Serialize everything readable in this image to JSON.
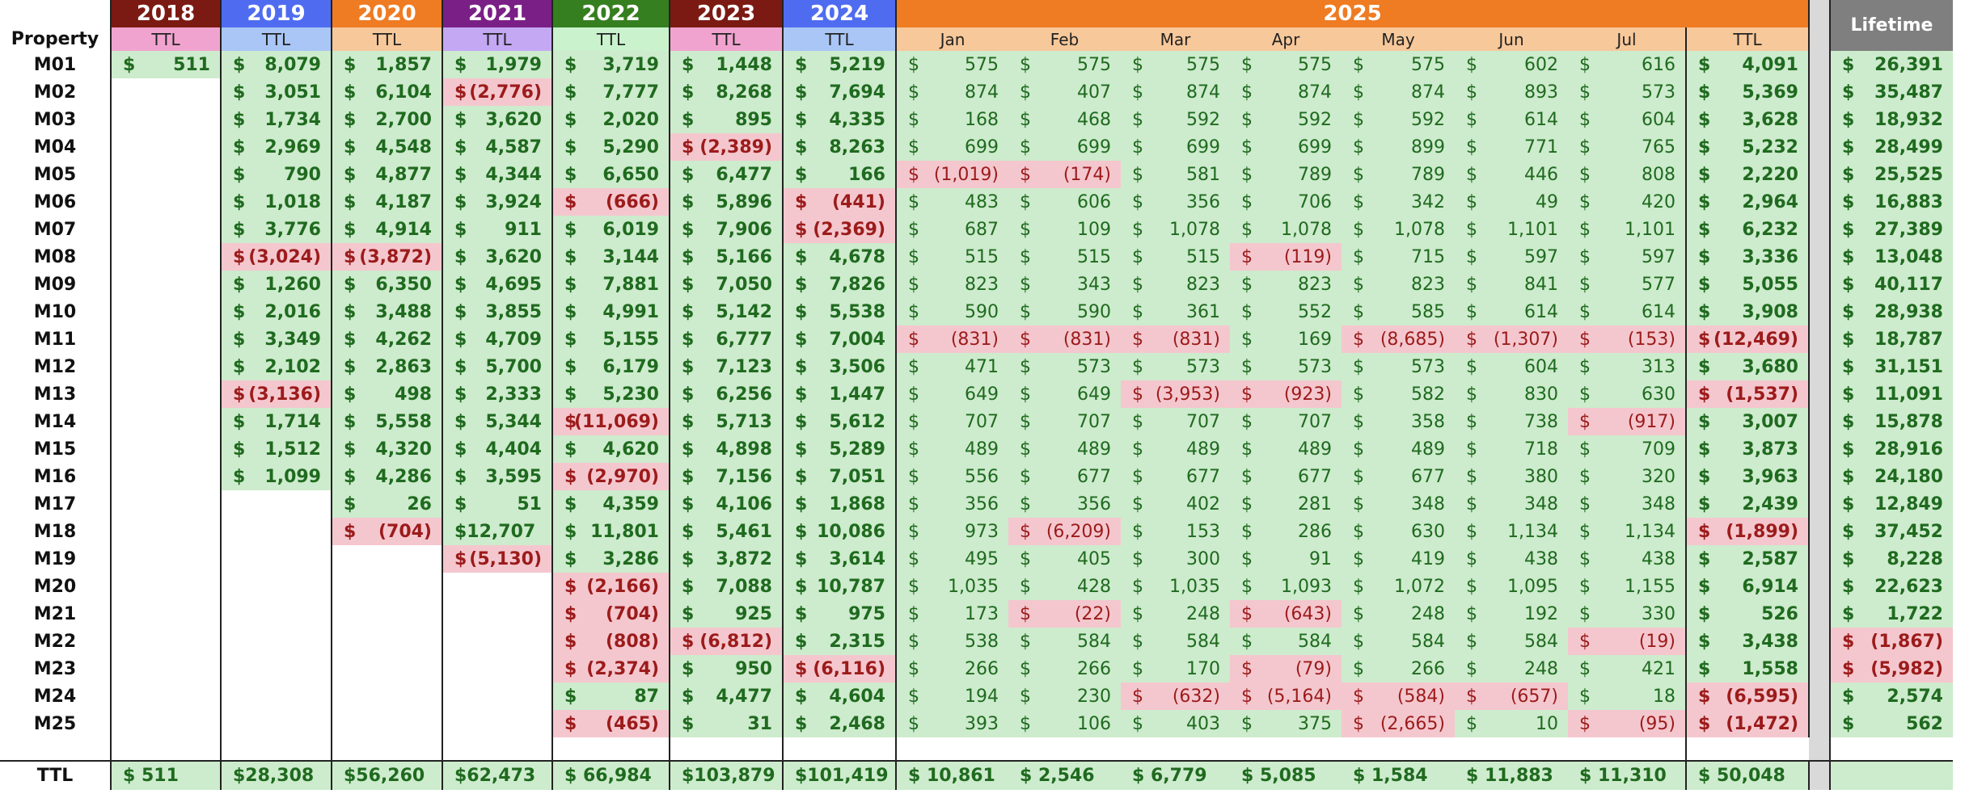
{
  "header": {
    "property_label": "Property",
    "lifetime_label": "Lifetime",
    "year_cols": [
      {
        "year": "2018",
        "sub": "TTL",
        "bg": "#7b1a12",
        "subbg": "#f1a3cf"
      },
      {
        "year": "2019",
        "sub": "TTL",
        "bg": "#4f6cf1",
        "subbg": "#a9c6f6"
      },
      {
        "year": "2020",
        "sub": "TTL",
        "bg": "#ef7b22",
        "subbg": "#f7c89a"
      },
      {
        "year": "2021",
        "sub": "TTL",
        "bg": "#7a1f86",
        "subbg": "#c4a8f4"
      },
      {
        "year": "2022",
        "sub": "TTL",
        "bg": "#367f20",
        "subbg": "#c9f2cd"
      },
      {
        "year": "2023",
        "sub": "TTL",
        "bg": "#7b1a12",
        "subbg": "#f1a3cf"
      },
      {
        "year": "2024",
        "sub": "TTL",
        "bg": "#4f6cf1",
        "subbg": "#a9c6f6"
      }
    ],
    "year_2025": {
      "year": "2025",
      "bg": "#ef7b22",
      "subbg": "#f7c89a",
      "months": [
        "Jan",
        "Feb",
        "Mar",
        "Apr",
        "May",
        "Jun",
        "Jul"
      ],
      "ttl": "TTL"
    }
  },
  "rows": [
    {
      "name": "M01",
      "y": [
        "511",
        "8,079",
        "1,857",
        "1,979",
        "3,719",
        "1,448",
        "5,219"
      ],
      "m": [
        "575",
        "575",
        "575",
        "575",
        "575",
        "602",
        "616"
      ],
      "ttl": "4,091",
      "life": "26,391"
    },
    {
      "name": "M02",
      "y": [
        "",
        "3,051",
        "6,104",
        "(2,776)",
        "7,777",
        "8,268",
        "7,694"
      ],
      "m": [
        "874",
        "407",
        "874",
        "874",
        "874",
        "893",
        "573"
      ],
      "ttl": "5,369",
      "life": "35,487"
    },
    {
      "name": "M03",
      "y": [
        "",
        "1,734",
        "2,700",
        "3,620",
        "2,020",
        "895",
        "4,335"
      ],
      "m": [
        "168",
        "468",
        "592",
        "592",
        "592",
        "614",
        "604"
      ],
      "ttl": "3,628",
      "life": "18,932"
    },
    {
      "name": "M04",
      "y": [
        "",
        "2,969",
        "4,548",
        "4,587",
        "5,290",
        "(2,389)",
        "8,263"
      ],
      "m": [
        "699",
        "699",
        "699",
        "699",
        "899",
        "771",
        "765"
      ],
      "ttl": "5,232",
      "life": "28,499"
    },
    {
      "name": "M05",
      "y": [
        "",
        "790",
        "4,877",
        "4,344",
        "6,650",
        "6,477",
        "166"
      ],
      "m": [
        "(1,019)",
        "(174)",
        "581",
        "789",
        "789",
        "446",
        "808"
      ],
      "ttl": "2,220",
      "life": "25,525"
    },
    {
      "name": "M06",
      "y": [
        "",
        "1,018",
        "4,187",
        "3,924",
        "(666)",
        "5,896",
        "(441)"
      ],
      "m": [
        "483",
        "606",
        "356",
        "706",
        "342",
        "49",
        "420"
      ],
      "ttl": "2,964",
      "life": "16,883"
    },
    {
      "name": "M07",
      "y": [
        "",
        "3,776",
        "4,914",
        "911",
        "6,019",
        "7,906",
        "(2,369)"
      ],
      "m": [
        "687",
        "109",
        "1,078",
        "1,078",
        "1,078",
        "1,101",
        "1,101"
      ],
      "ttl": "6,232",
      "life": "27,389"
    },
    {
      "name": "M08",
      "y": [
        "",
        "(3,024)",
        "(3,872)",
        "3,620",
        "3,144",
        "5,166",
        "4,678"
      ],
      "m": [
        "515",
        "515",
        "515",
        "(119)",
        "715",
        "597",
        "597"
      ],
      "ttl": "3,336",
      "life": "13,048"
    },
    {
      "name": "M09",
      "y": [
        "",
        "1,260",
        "6,350",
        "4,695",
        "7,881",
        "7,050",
        "7,826"
      ],
      "m": [
        "823",
        "343",
        "823",
        "823",
        "823",
        "841",
        "577"
      ],
      "ttl": "5,055",
      "life": "40,117"
    },
    {
      "name": "M10",
      "y": [
        "",
        "2,016",
        "3,488",
        "3,855",
        "4,991",
        "5,142",
        "5,538"
      ],
      "m": [
        "590",
        "590",
        "361",
        "552",
        "585",
        "614",
        "614"
      ],
      "ttl": "3,908",
      "life": "28,938"
    },
    {
      "name": "M11",
      "y": [
        "",
        "3,349",
        "4,262",
        "4,709",
        "5,155",
        "6,777",
        "7,004"
      ],
      "m": [
        "(831)",
        "(831)",
        "(831)",
        "169",
        "(8,685)",
        "(1,307)",
        "(153)"
      ],
      "ttl": "(12,469)",
      "life": "18,787"
    },
    {
      "name": "M12",
      "y": [
        "",
        "2,102",
        "2,863",
        "5,700",
        "6,179",
        "7,123",
        "3,506"
      ],
      "m": [
        "471",
        "573",
        "573",
        "573",
        "573",
        "604",
        "313"
      ],
      "ttl": "3,680",
      "life": "31,151"
    },
    {
      "name": "M13",
      "y": [
        "",
        "(3,136)",
        "498",
        "2,333",
        "5,230",
        "6,256",
        "1,447"
      ],
      "m": [
        "649",
        "649",
        "(3,953)",
        "(923)",
        "582",
        "830",
        "630"
      ],
      "ttl": "(1,537)",
      "life": "11,091"
    },
    {
      "name": "M14",
      "y": [
        "",
        "1,714",
        "5,558",
        "5,344",
        "(11,069)",
        "5,713",
        "5,612"
      ],
      "m": [
        "707",
        "707",
        "707",
        "707",
        "358",
        "738",
        "(917)"
      ],
      "ttl": "3,007",
      "life": "15,878"
    },
    {
      "name": "M15",
      "y": [
        "",
        "1,512",
        "4,320",
        "4,404",
        "4,620",
        "4,898",
        "5,289"
      ],
      "m": [
        "489",
        "489",
        "489",
        "489",
        "489",
        "718",
        "709"
      ],
      "ttl": "3,873",
      "life": "28,916"
    },
    {
      "name": "M16",
      "y": [
        "",
        "1,099",
        "4,286",
        "3,595",
        "(2,970)",
        "7,156",
        "7,051"
      ],
      "m": [
        "556",
        "677",
        "677",
        "677",
        "677",
        "380",
        "320"
      ],
      "ttl": "3,963",
      "life": "24,180"
    },
    {
      "name": "M17",
      "y": [
        "",
        "",
        "26",
        "51",
        "4,359",
        "4,106",
        "1,868"
      ],
      "m": [
        "356",
        "356",
        "402",
        "281",
        "348",
        "348",
        "348"
      ],
      "ttl": "2,439",
      "life": "12,849"
    },
    {
      "name": "M18",
      "y": [
        "",
        "",
        "(704)",
        "$12,707",
        "11,801",
        "5,461",
        "10,086"
      ],
      "m": [
        "973",
        "(6,209)",
        "153",
        "286",
        "630",
        "1,134",
        "1,134"
      ],
      "ttl": "(1,899)",
      "life": "37,452"
    },
    {
      "name": "M19",
      "y": [
        "",
        "",
        "",
        "(5,130)",
        "3,286",
        "3,872",
        "3,614"
      ],
      "m": [
        "495",
        "405",
        "300",
        "91",
        "419",
        "438",
        "438"
      ],
      "ttl": "2,587",
      "life": "8,228"
    },
    {
      "name": "M20",
      "y": [
        "",
        "",
        "",
        "",
        "(2,166)",
        "7,088",
        "10,787"
      ],
      "m": [
        "1,035",
        "428",
        "1,035",
        "1,093",
        "1,072",
        "1,095",
        "1,155"
      ],
      "ttl": "6,914",
      "life": "22,623"
    },
    {
      "name": "M21",
      "y": [
        "",
        "",
        "",
        "",
        "(704)",
        "925",
        "975"
      ],
      "m": [
        "173",
        "(22)",
        "248",
        "(643)",
        "248",
        "192",
        "330"
      ],
      "ttl": "526",
      "life": "1,722"
    },
    {
      "name": "M22",
      "y": [
        "",
        "",
        "",
        "",
        "(808)",
        "(6,812)",
        "2,315"
      ],
      "m": [
        "538",
        "584",
        "584",
        "584",
        "584",
        "584",
        "(19)"
      ],
      "ttl": "3,438",
      "life": "(1,867)"
    },
    {
      "name": "M23",
      "y": [
        "",
        "",
        "",
        "",
        "(2,374)",
        "950",
        "(6,116)"
      ],
      "m": [
        "266",
        "266",
        "170",
        "(79)",
        "266",
        "248",
        "421"
      ],
      "ttl": "1,558",
      "life": "(5,982)"
    },
    {
      "name": "M24",
      "y": [
        "",
        "",
        "",
        "",
        "87",
        "4,477",
        "4,604"
      ],
      "m": [
        "194",
        "230",
        "(632)",
        "(5,164)",
        "(584)",
        "(657)",
        "18"
      ],
      "ttl": "(6,595)",
      "life": "2,574"
    },
    {
      "name": "M25",
      "y": [
        "",
        "",
        "",
        "",
        "(465)",
        "31",
        "2,468"
      ],
      "m": [
        "393",
        "106",
        "403",
        "375",
        "(2,665)",
        "10",
        "(95)"
      ],
      "ttl": "(1,472)",
      "life": "562"
    }
  ],
  "total": {
    "label": "TTL",
    "y": [
      "$ 511",
      "$28,308",
      "$56,260",
      "$62,473",
      "$ 66,984",
      "$103,879",
      "$101,419"
    ],
    "m": [
      "$ 10,861",
      "$ 2,546",
      "$ 6,779",
      "$ 5,085",
      "$ 1,584",
      "$ 11,883",
      "$ 11,310"
    ],
    "ttl": "$ 50,048",
    "life": ""
  },
  "currency_symbol": "$"
}
